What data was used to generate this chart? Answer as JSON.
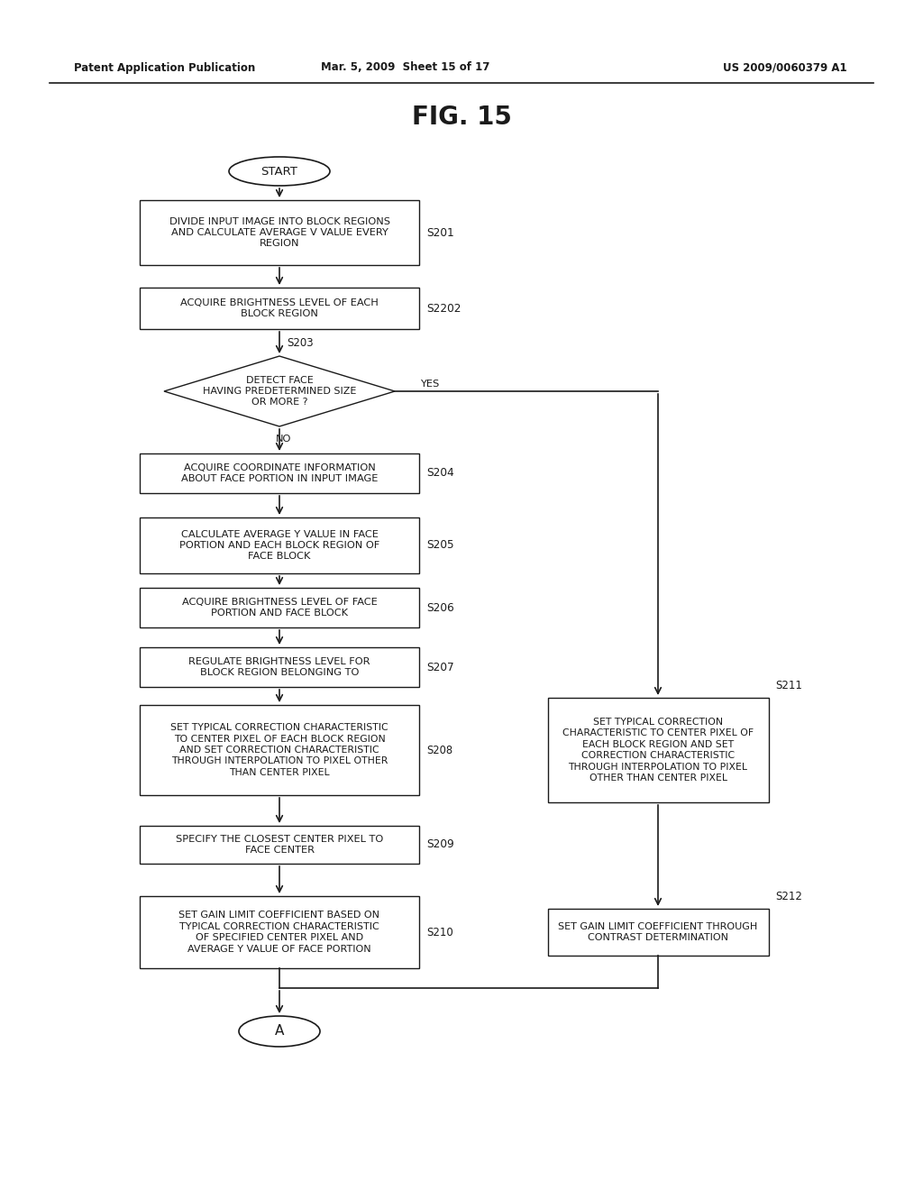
{
  "title": "FIG. 15",
  "header_left": "Patent Application Publication",
  "header_mid": "Mar. 5, 2009  Sheet 15 of 17",
  "header_right": "US 2009/0060379 A1",
  "background_color": "#ffffff",
  "line_color": "#1a1a1a",
  "text_color": "#1a1a1a",
  "fig_width": 10.24,
  "fig_height": 13.2,
  "dpi": 100
}
